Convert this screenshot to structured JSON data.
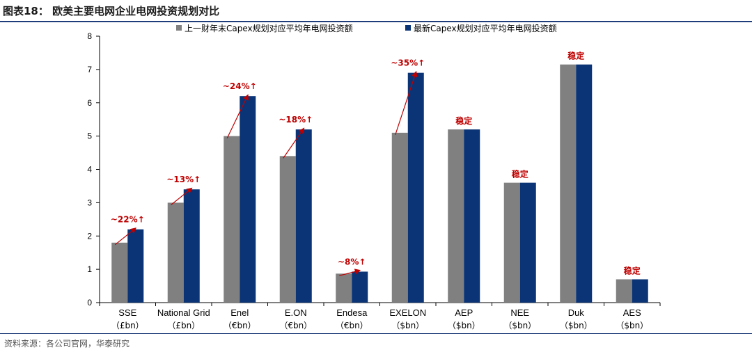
{
  "page": {
    "title": "图表18：  欧美主要电网企业电网投资规划对比",
    "source": "资料来源：各公司官网，华泰研究"
  },
  "colors": {
    "prev": "#808080",
    "latest": "#0a3476",
    "annotation": "#c00000",
    "rule": "#1f3d7a"
  },
  "chart_data": {
    "type": "bar",
    "title": "",
    "ylim": [
      0,
      8
    ],
    "yticks": [
      0,
      1,
      2,
      3,
      4,
      5,
      6,
      7,
      8
    ],
    "categories": [
      "SSE",
      "National Grid",
      "Enel",
      "E.ON",
      "Endesa",
      "EXELON",
      "AEP",
      "NEE",
      "Duk",
      "AES"
    ],
    "units": [
      "（£bn）",
      "（£bn）",
      "（€bn）",
      "（€bn）",
      "（€bn）",
      "（$bn）",
      "（$bn）",
      "（$bn）",
      "（$bn）",
      "（$bn）"
    ],
    "series": [
      {
        "name": "上一财年末Capex规划对应平均年电网投资额",
        "values": [
          1.8,
          3.0,
          5.0,
          4.4,
          0.87,
          5.1,
          5.2,
          3.6,
          7.15,
          0.7
        ]
      },
      {
        "name": "最新Capex规划对应平均年电网投资额",
        "values": [
          2.2,
          3.4,
          6.2,
          5.2,
          0.93,
          6.9,
          5.2,
          3.6,
          7.15,
          0.7
        ]
      }
    ],
    "annotations": [
      "~22%↑",
      "~13%↑",
      "~24%↑",
      "~18%↑",
      "~8%↑",
      "~35%↑",
      "稳定",
      "稳定",
      "稳定",
      "稳定"
    ],
    "grid": false,
    "legend_position": "top"
  }
}
